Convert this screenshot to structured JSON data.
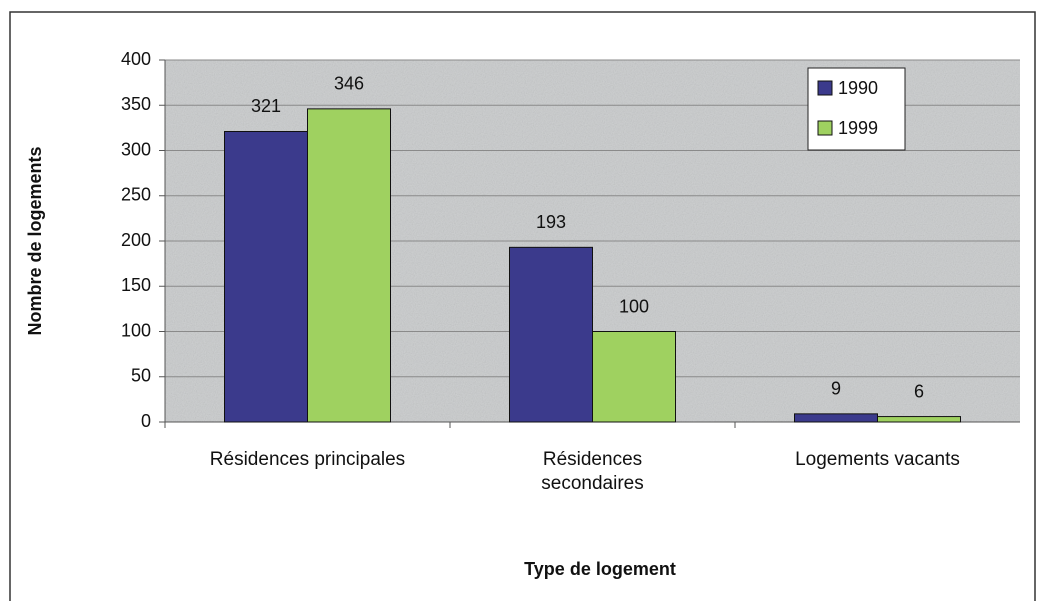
{
  "chart_data": {
    "type": "bar",
    "categories": [
      "Résidences principales",
      "Résidences secondaires",
      "Logements vacants"
    ],
    "series": [
      {
        "name": "1990",
        "color": "#3b3a8c",
        "values": [
          321,
          193,
          9
        ]
      },
      {
        "name": "1999",
        "color": "#9fd160",
        "values": [
          346,
          100,
          6
        ]
      }
    ],
    "ylim": [
      0,
      400
    ],
    "yticks": [
      0,
      50,
      100,
      150,
      200,
      250,
      300,
      350,
      400
    ],
    "grid": true,
    "y_label": "Nombre de logements",
    "x_label": "Type de logement",
    "legend": "upper right"
  }
}
